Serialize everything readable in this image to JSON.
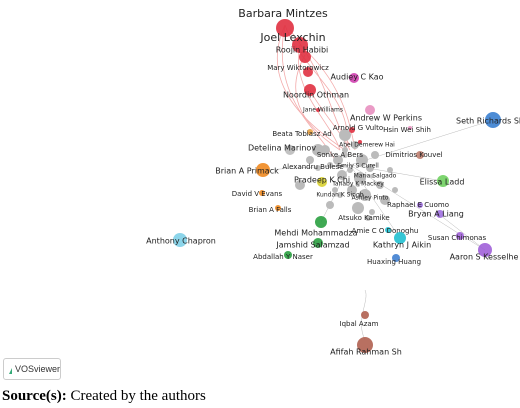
{
  "nodes": [
    {
      "label": "Barbara Mintzes"
    },
    {
      "label": "Joel Lexchin"
    },
    {
      "label": "Roojin Habibi"
    },
    {
      "label": "Mary Wiktorowicz"
    },
    {
      "label": "Noordin Othman"
    },
    {
      "label": "Jane Williams"
    },
    {
      "label": "Audiey C Kao"
    },
    {
      "label": "Andrew W Perkins"
    },
    {
      "label": "Hsin Wei Shih"
    },
    {
      "label": "Arnold G Vulto"
    },
    {
      "label": "Beata Tobiasz Ad"
    },
    {
      "label": "Detelina Marinov"
    },
    {
      "label": "Abel Demerew Hai"
    },
    {
      "label": "Sonke A Bers"
    },
    {
      "label": "Dimitrios Kouvel"
    },
    {
      "label": "Seth Richards Sh"
    },
    {
      "label": "Alexandru Bulese"
    },
    {
      "label": "Emily S Curell"
    },
    {
      "label": "Brian A Primack"
    },
    {
      "label": "Maria Salgado"
    },
    {
      "label": "Pradeep K Chi"
    },
    {
      "label": "Tanaby K Mackey"
    },
    {
      "label": "Elissa Ladd"
    },
    {
      "label": "David V Evans"
    },
    {
      "label": "Kundan K Singh"
    },
    {
      "label": "Ashley Pinto"
    },
    {
      "label": "Raphael E Cuomo"
    },
    {
      "label": "Brian A Falls"
    },
    {
      "label": "Bryan A Liang"
    },
    {
      "label": "Atsuko Kamike"
    },
    {
      "label": "Aaron S Kesselhe"
    },
    {
      "label": "Susan Chimonas"
    },
    {
      "label": "Mehdi Mohammadza"
    },
    {
      "label": "Amie C O Donoghu"
    },
    {
      "label": "Anthony Chapron"
    },
    {
      "label": "Jamshid Salamzad"
    },
    {
      "label": "Kathryn J Aikin"
    },
    {
      "label": "Abdallah Y Naser"
    },
    {
      "label": "Huaxing Huang"
    },
    {
      "label": "Iqbal Azam"
    },
    {
      "label": "Afifah Rahman Sh"
    }
  ],
  "logo": "VOSviewer",
  "caption": {
    "prefix": "Source(s):",
    "text": "Created by the authors"
  }
}
